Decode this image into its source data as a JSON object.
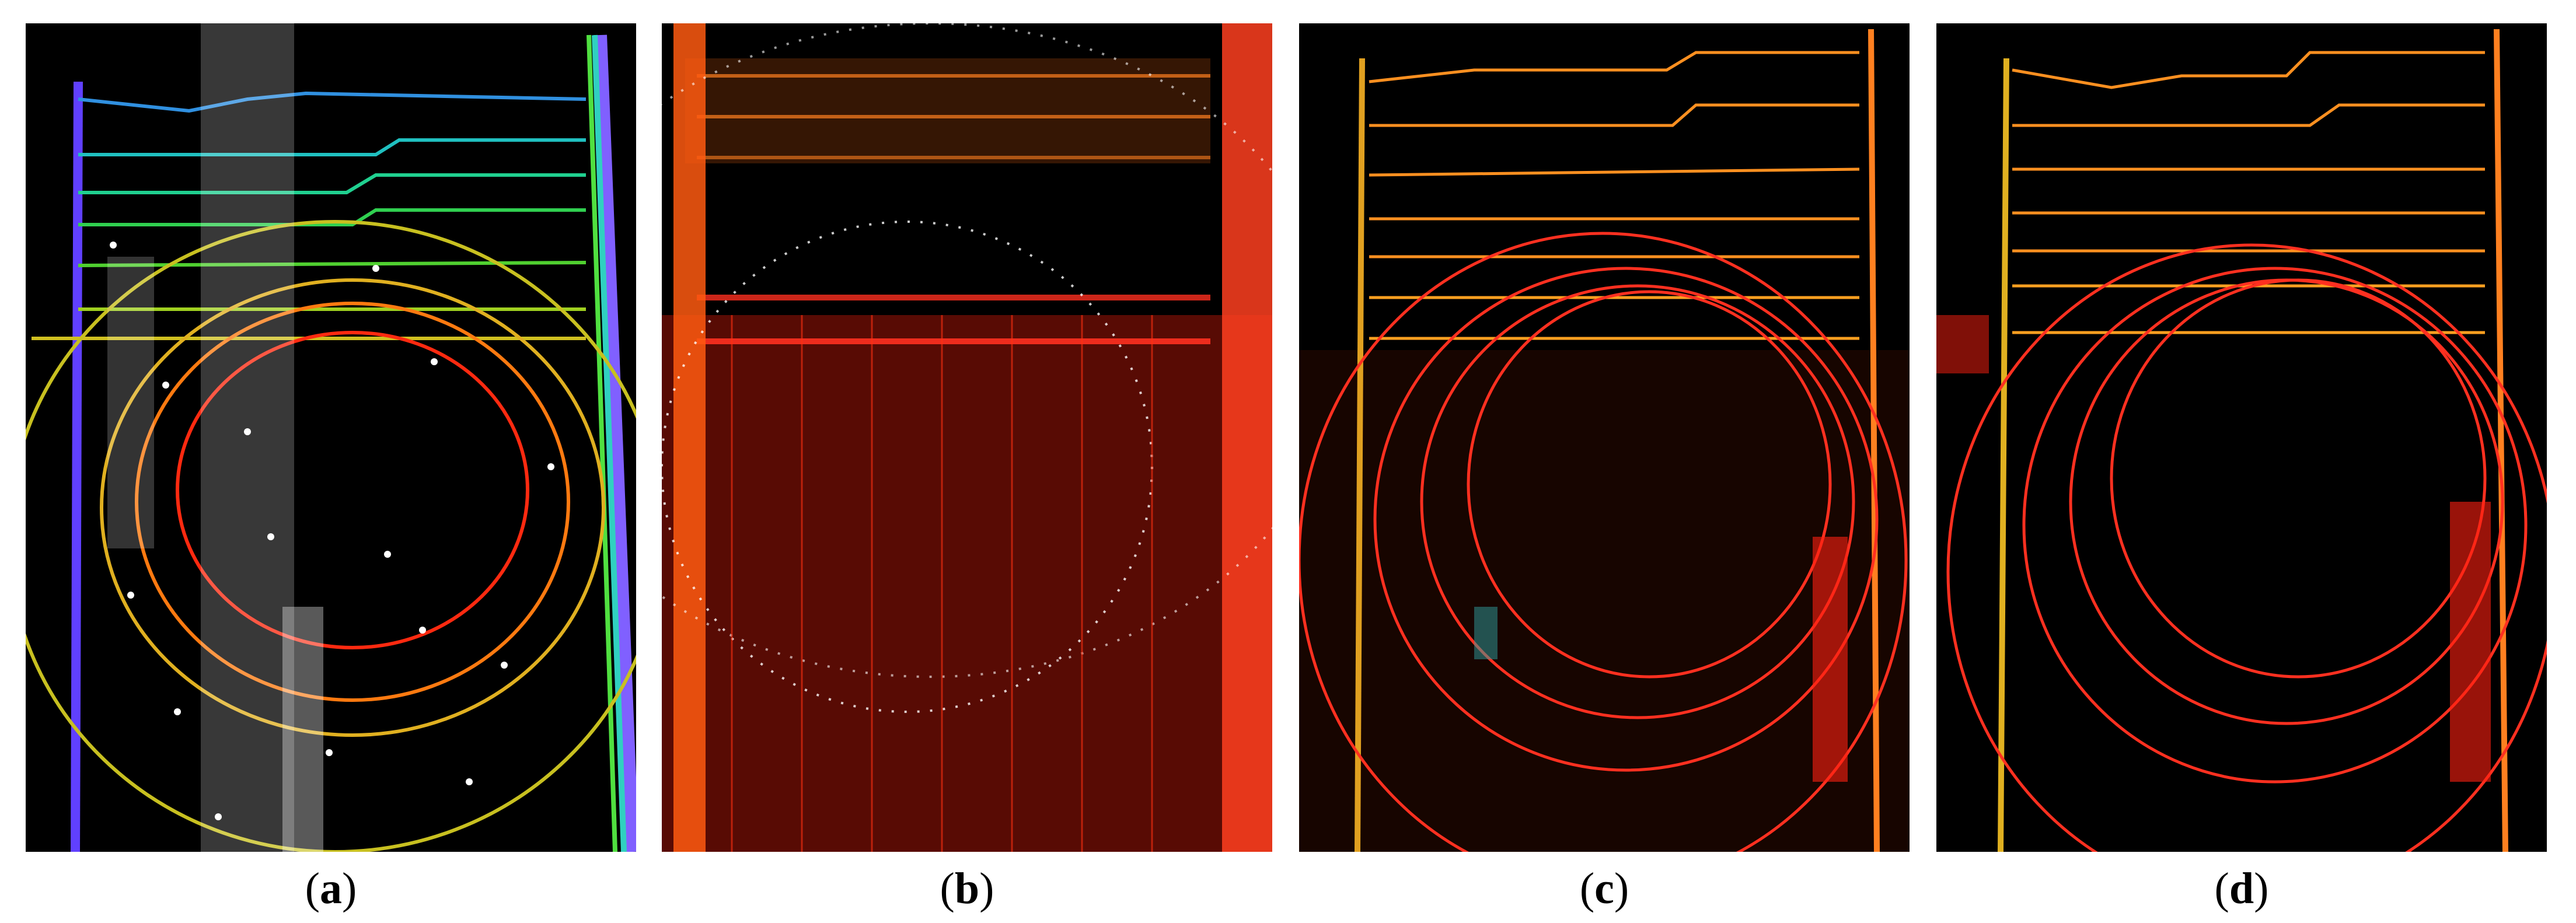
{
  "figure": {
    "panels": [
      {
        "id": "a",
        "caption_open": "(",
        "caption_letter": "a",
        "caption_close": ")"
      },
      {
        "id": "b",
        "caption_open": "(",
        "caption_letter": "b",
        "caption_close": ")"
      },
      {
        "id": "c",
        "caption_open": "(",
        "caption_letter": "c",
        "caption_close": ")"
      },
      {
        "id": "d",
        "caption_open": "(",
        "caption_letter": "d",
        "caption_close": ")"
      }
    ],
    "colors": {
      "background": "#000000",
      "ring_red": "#ff2a10",
      "ring_orange": "#ff7a10",
      "ring_yellow": "#e8d020",
      "line_green": "#40d040",
      "line_cyan": "#20c0d0",
      "line_blue": "#3070ff",
      "points_white": "#ffffff",
      "points_red": "#e02010"
    }
  }
}
